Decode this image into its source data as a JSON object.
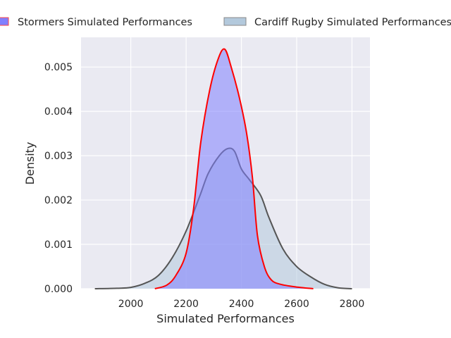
{
  "chart_data": {
    "type": "area",
    "title": "",
    "xlabel": "Simulated Performances",
    "ylabel": "Density",
    "xlim": [
      1820,
      2865
    ],
    "ylim": [
      0,
      0.00567
    ],
    "xticks": [
      2000,
      2200,
      2400,
      2600,
      2800
    ],
    "xtick_labels": [
      "2000",
      "2200",
      "2400",
      "2600",
      "2800"
    ],
    "yticks": [
      0,
      0.001,
      0.002,
      0.003,
      0.004,
      0.005
    ],
    "ytick_labels": [
      "0.000",
      "0.001",
      "0.002",
      "0.003",
      "0.004",
      "0.005"
    ],
    "grid": true,
    "legend_placement": "top-center-outside",
    "series": [
      {
        "name": "Cardiff Rugby Simulated Performances",
        "fill": "#b3c9dc",
        "line": "#555555",
        "x": [
          1870,
          1950,
          2000,
          2050,
          2100,
          2150,
          2200,
          2250,
          2280,
          2320,
          2350,
          2375,
          2400,
          2430,
          2470,
          2500,
          2550,
          2600,
          2650,
          2700,
          2750,
          2800
        ],
        "y": [
          0,
          1e-05,
          3e-05,
          0.00012,
          0.0003,
          0.0007,
          0.0013,
          0.0021,
          0.0026,
          0.003,
          0.00316,
          0.0031,
          0.0027,
          0.00245,
          0.0021,
          0.0016,
          0.0009,
          0.0005,
          0.00027,
          0.0001,
          2e-05,
          0
        ]
      },
      {
        "name": "Stormers Simulated Performances",
        "fill": "#8080ff",
        "line": "#ff0000",
        "x": [
          2087,
          2130,
          2163,
          2200,
          2227,
          2253,
          2286,
          2317,
          2340,
          2363,
          2393,
          2419,
          2440,
          2458,
          2483,
          2508,
          2541,
          2597,
          2660
        ],
        "y": [
          0,
          8e-05,
          0.0003,
          0.0008,
          0.0018,
          0.0033,
          0.0045,
          0.0052,
          0.0054,
          0.005,
          0.0043,
          0.0035,
          0.0025,
          0.0012,
          0.0005,
          0.0002,
          0.0001,
          4e-05,
          0
        ]
      }
    ]
  }
}
